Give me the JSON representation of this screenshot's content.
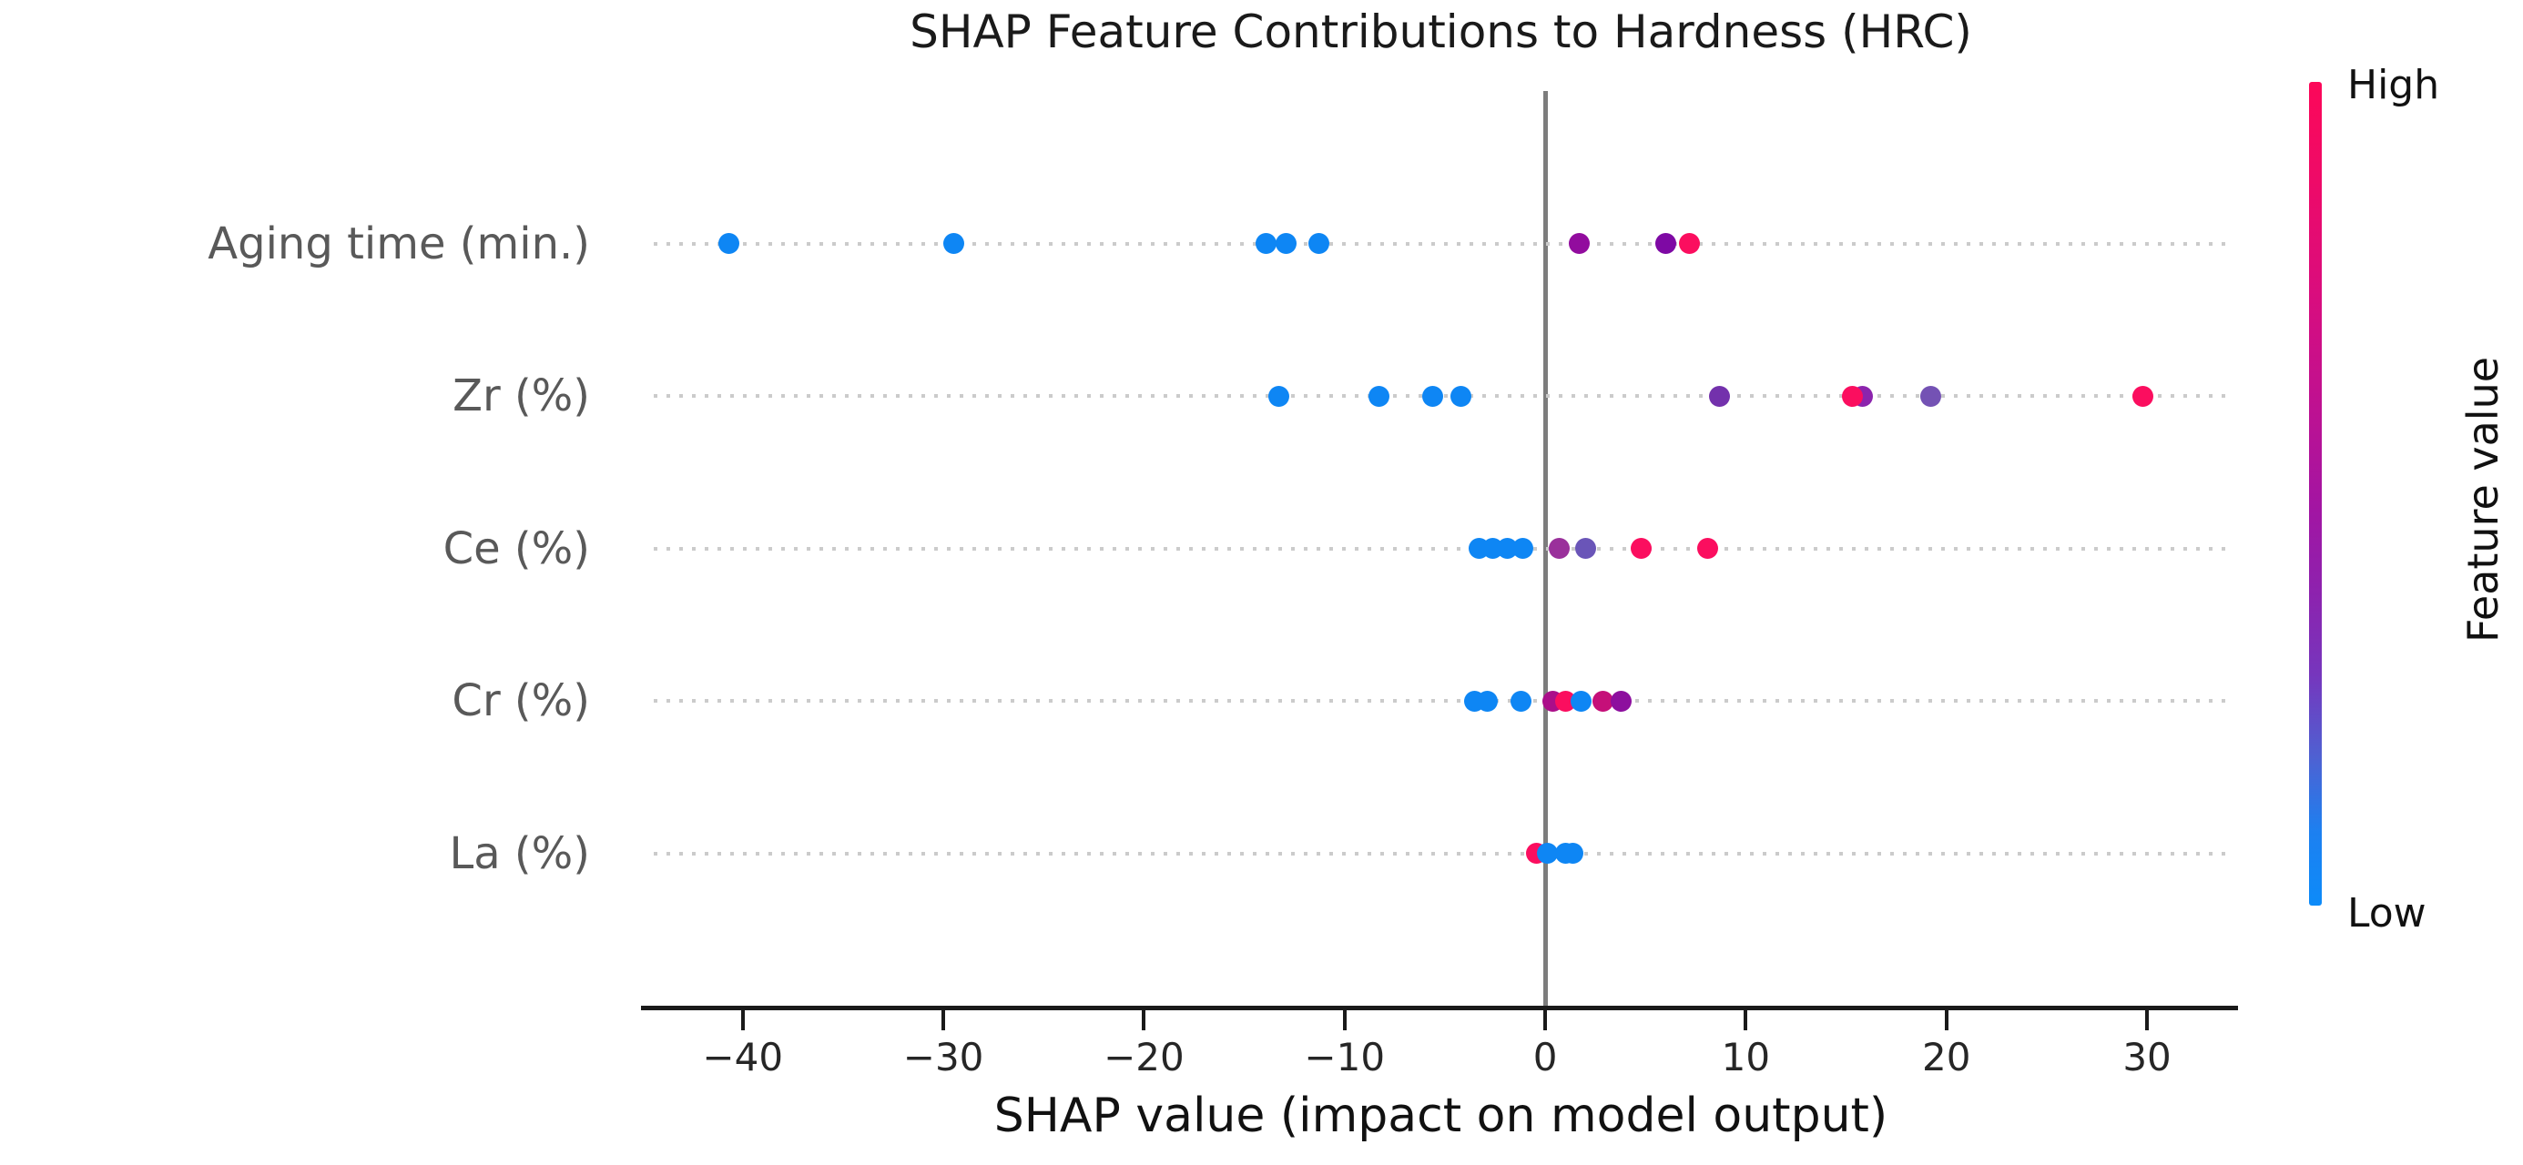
{
  "chart_data": {
    "type": "scatter",
    "variant": "shap-summary-beeswarm",
    "title": "SHAP Feature Contributions to Hardness (HRC)",
    "xlabel": "SHAP value (impact on model output)",
    "ylabel": "",
    "xlim": [
      -44.8,
      34.4
    ],
    "x_ticks": [
      -40,
      -30,
      -20,
      -10,
      0,
      10,
      20,
      30
    ],
    "x_tick_labels": [
      "−40",
      "−30",
      "−20",
      "−10",
      "0",
      "10",
      "20",
      "30"
    ],
    "grid": "dotted horizontal line per feature row",
    "zero_reference_line": true,
    "legend_position": "vertical colorbar at right",
    "colorbar": {
      "high": "High",
      "low": "Low",
      "label": "Feature value",
      "high_color": "#fb0e5f",
      "mid_color": "#8d22ae",
      "low_color": "#0d8bf9"
    },
    "point_color_meaning": {
      "high_feature_value": "#fb0e5f",
      "low_feature_value": "#0e86f4"
    },
    "features": [
      {
        "name": "Aging time (min.)",
        "points": [
          {
            "x": -40.7,
            "color": "#0e86f4"
          },
          {
            "x": -29.5,
            "color": "#0e86f4"
          },
          {
            "x": -13.9,
            "color": "#0e86f4"
          },
          {
            "x": -12.9,
            "color": "#0e86f4"
          },
          {
            "x": -11.3,
            "color": "#0e86f4"
          },
          {
            "x": 1.7,
            "color": "#920c9e"
          },
          {
            "x": 6.0,
            "color": "#7e09a4"
          },
          {
            "x": 7.2,
            "color": "#fb0e5f"
          }
        ]
      },
      {
        "name": "Zr (%)",
        "points": [
          {
            "x": -13.3,
            "color": "#0e86f4"
          },
          {
            "x": -8.3,
            "color": "#0e86f4"
          },
          {
            "x": -5.6,
            "color": "#0e86f4"
          },
          {
            "x": -4.2,
            "color": "#0e86f4"
          },
          {
            "x": 8.7,
            "color": "#7331ac"
          },
          {
            "x": 15.8,
            "color": "#8c24ad"
          },
          {
            "x": 15.3,
            "color": "#fb0e5f"
          },
          {
            "x": 19.2,
            "color": "#7452b4"
          },
          {
            "x": 29.8,
            "color": "#fb0e5f"
          }
        ]
      },
      {
        "name": "Ce (%)",
        "points": [
          {
            "x": -3.3,
            "color": "#0e86f4"
          },
          {
            "x": -2.6,
            "color": "#0e86f4"
          },
          {
            "x": -1.9,
            "color": "#0e86f4"
          },
          {
            "x": -1.1,
            "color": "#0e86f4"
          },
          {
            "x": 0.7,
            "color": "#9a309b"
          },
          {
            "x": 2.0,
            "color": "#6a55b8"
          },
          {
            "x": 4.8,
            "color": "#fb0e5f"
          },
          {
            "x": 8.1,
            "color": "#fb0e5f"
          }
        ]
      },
      {
        "name": "Cr (%)",
        "points": [
          {
            "x": -3.5,
            "color": "#0e86f4"
          },
          {
            "x": -2.9,
            "color": "#0e86f4"
          },
          {
            "x": -1.2,
            "color": "#0e86f4"
          },
          {
            "x": 0.4,
            "color": "#ab0e8a"
          },
          {
            "x": 1.0,
            "color": "#fb0e5f"
          },
          {
            "x": 1.8,
            "color": "#0e86f4"
          },
          {
            "x": 2.9,
            "color": "#c50f79"
          },
          {
            "x": 3.8,
            "color": "#8d0f9e"
          }
        ]
      },
      {
        "name": "La (%)",
        "points": [
          {
            "x": -0.45,
            "color": "#fb0e5f"
          },
          {
            "x": 0.1,
            "color": "#0e86f4"
          },
          {
            "x": 1.0,
            "color": "#0e86f4"
          },
          {
            "x": 1.4,
            "color": "#0e86f4"
          }
        ]
      }
    ]
  }
}
